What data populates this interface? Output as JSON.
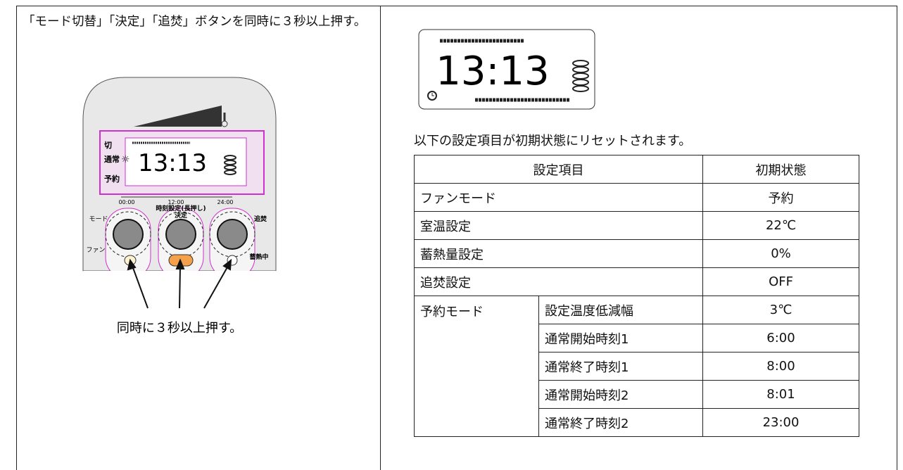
{
  "left": {
    "instruction": "「モード切替」「決定」「追焚」ボタンを同時に３秒以上押す。",
    "controller": {
      "mode_off": "切",
      "mode_normal": "通常",
      "mode_reserve": "予約",
      "time_display": "13:13",
      "scale": [
        "00:00",
        "12:00",
        "24:00"
      ],
      "button_mode": "モード",
      "button_time_setting": "時刻設定(長押し)",
      "button_decide": "決定",
      "button_boost": "追焚",
      "fan": "ファン",
      "storing": "蓄熱中"
    },
    "caption": "同時に３秒以上押す。"
  },
  "right": {
    "time_display": "13:13",
    "note": "以下の設定項目が初期状態にリセットされます。",
    "table": {
      "header": [
        "設定項目",
        "初期状態"
      ],
      "rows": [
        [
          "ファンモード",
          "予約"
        ],
        [
          "室温設定",
          "22℃"
        ],
        [
          "蓄熱量設定",
          "0%"
        ],
        [
          "追焚設定",
          "OFF"
        ]
      ],
      "group": {
        "label": "予約モード",
        "rows": [
          [
            "設定温度低減幅",
            "3℃"
          ],
          [
            "通常開始時刻1",
            "6:00"
          ],
          [
            "通常終了時刻1",
            "8:00"
          ],
          [
            "通常開始時刻2",
            "8:01"
          ],
          [
            "通常終了時刻2",
            "23:00"
          ]
        ]
      }
    }
  }
}
